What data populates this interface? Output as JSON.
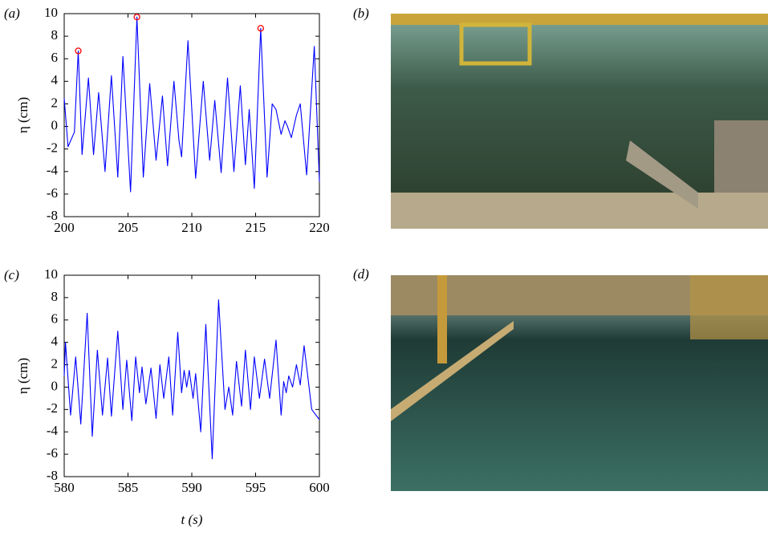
{
  "chart_data": [
    {
      "type": "line",
      "panel_label": "(a)",
      "ylabel": "η (cm)",
      "xlim": [
        200,
        220
      ],
      "xticks": [
        200,
        205,
        210,
        215,
        220
      ],
      "ylim": [
        -8,
        10
      ],
      "yticks": [
        -8,
        -6,
        -4,
        -2,
        0,
        2,
        4,
        6,
        8,
        10
      ],
      "color": "#0000ff",
      "x": [
        200,
        200.3,
        200.8,
        201.1,
        201.4,
        201.9,
        202.3,
        202.7,
        203.2,
        203.7,
        204.2,
        204.6,
        205.2,
        205.7,
        206.2,
        206.7,
        207.2,
        207.7,
        208.1,
        208.6,
        209.0,
        209.2,
        209.7,
        210.3,
        210.9,
        211.4,
        211.8,
        212.3,
        212.8,
        213.3,
        213.8,
        214.2,
        214.5,
        214.9,
        215.4,
        215.9,
        216.3,
        216.6,
        217.0,
        217.3,
        217.5,
        217.8,
        218.2,
        218.5,
        219.0,
        219.6,
        220
      ],
      "values": [
        2.5,
        -1.8,
        -0.5,
        6.7,
        -2.5,
        4.3,
        -2.5,
        3,
        -4,
        4.5,
        -4.5,
        6.2,
        -5.8,
        9.7,
        -4.5,
        3.8,
        -3,
        2.7,
        -3.5,
        4,
        -1.3,
        -2.7,
        7.6,
        -4.6,
        4,
        -3,
        2.3,
        -4.1,
        4.3,
        -4,
        3.6,
        -3.4,
        1.5,
        -5.5,
        8.7,
        -4.5,
        2,
        1.5,
        -0.7,
        0.5,
        0,
        -1,
        1,
        2,
        -4.3,
        7.1,
        -4.9
      ],
      "markers": {
        "color": "#ff0000",
        "x": [
          201.1,
          205.7,
          215.4
        ],
        "values": [
          6.7,
          9.7,
          8.7
        ]
      }
    },
    {
      "type": "line",
      "panel_label": "(c)",
      "ylabel": "η (cm)",
      "xlabel": "t (s)",
      "xlim": [
        580,
        600
      ],
      "xticks": [
        580,
        585,
        590,
        595,
        600
      ],
      "ylim": [
        -8,
        10
      ],
      "yticks": [
        -8,
        -6,
        -4,
        -2,
        0,
        2,
        4,
        6,
        8,
        10
      ],
      "color": "#0000ff",
      "x": [
        580,
        580.1,
        580.5,
        580.9,
        581.3,
        581.8,
        582.2,
        582.6,
        583.0,
        583.4,
        583.7,
        584.2,
        584.6,
        584.9,
        585.3,
        585.6,
        585.9,
        586.1,
        586.4,
        586.8,
        587.2,
        587.5,
        587.8,
        588.2,
        588.5,
        588.9,
        589.2,
        589.4,
        589.6,
        589.8,
        590.1,
        590.3,
        590.7,
        591.1,
        591.6,
        592.1,
        592.6,
        592.9,
        593.2,
        593.5,
        593.9,
        594.2,
        594.6,
        594.9,
        595.3,
        595.7,
        596.1,
        596.6,
        597.0,
        597.2,
        597.4,
        597.6,
        597.9,
        598.2,
        598.5,
        598.8,
        599.4,
        600
      ],
      "values": [
        1,
        4,
        -2.5,
        2.7,
        -3.3,
        6.6,
        -4.4,
        3.3,
        -2.5,
        2.6,
        -2.6,
        5,
        -2,
        2.4,
        -3,
        2.7,
        -0.5,
        1.8,
        -1.5,
        1.7,
        -2.8,
        2,
        -1,
        2.7,
        -2.5,
        4.9,
        -0.5,
        1.5,
        0,
        1.5,
        -1,
        1.2,
        -4,
        5.6,
        -6.4,
        7.8,
        -2,
        0,
        -2.5,
        2.3,
        -1.7,
        3.3,
        -2,
        2.7,
        -1,
        2.5,
        -1,
        4.2,
        -2.5,
        0.5,
        -0.5,
        1,
        0,
        2,
        0.2,
        3.7,
        -2,
        -2.9
      ]
    }
  ],
  "photos": [
    {
      "panel_label": "(b)"
    },
    {
      "panel_label": "(d)"
    }
  ]
}
